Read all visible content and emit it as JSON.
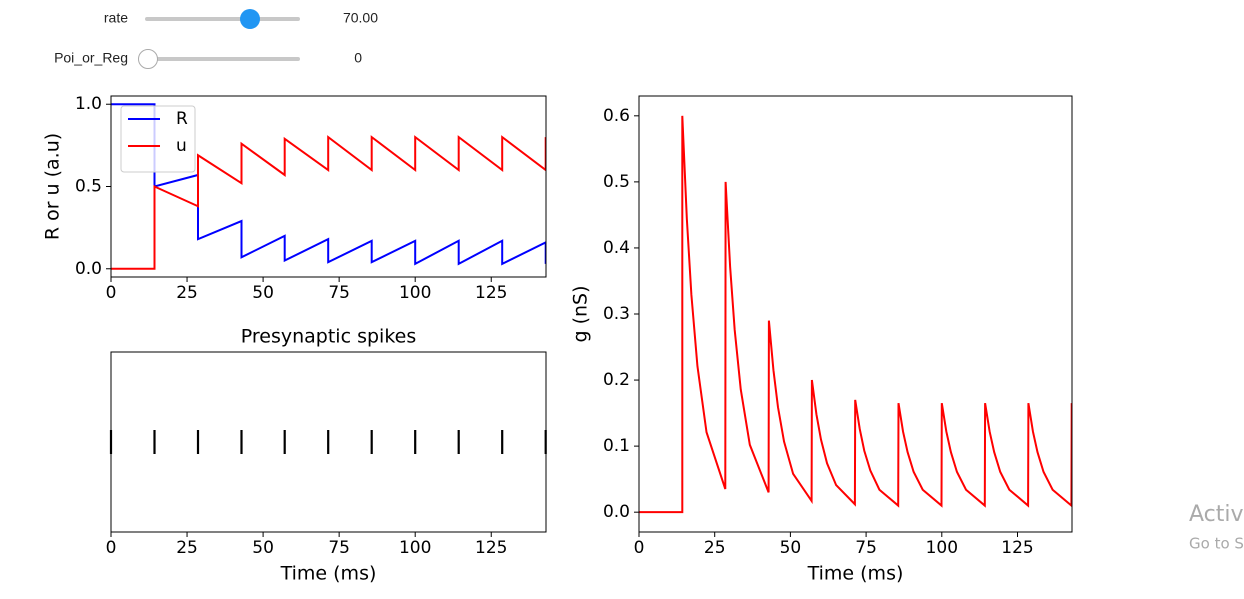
{
  "controls": [
    {
      "label": "rate",
      "value_text": "70.00"
    },
    {
      "label": "Poi_or_Reg",
      "value_text": "0"
    }
  ],
  "watermark": {
    "line1": "Activ",
    "line2": "Go to S"
  },
  "chart_data": [
    {
      "type": "line",
      "ylabel": "R or u (a.u)",
      "x": [
        0,
        14.3,
        14.3,
        28.6,
        28.6,
        42.9,
        42.9,
        57.1,
        57.1,
        71.4,
        71.4,
        85.7,
        85.7,
        100,
        100,
        114.3,
        114.3,
        128.6,
        128.6,
        142.9,
        142.9
      ],
      "series": [
        {
          "name": "R",
          "color": "#0000ff",
          "values": [
            1,
            1,
            0.5,
            0.57,
            0.18,
            0.29,
            0.07,
            0.2,
            0.05,
            0.18,
            0.04,
            0.17,
            0.04,
            0.17,
            0.03,
            0.17,
            0.03,
            0.17,
            0.03,
            0.16,
            0.03
          ]
        },
        {
          "name": "u",
          "color": "#ff0000",
          "values": [
            0,
            0,
            0.5,
            0.38,
            0.69,
            0.52,
            0.76,
            0.57,
            0.79,
            0.6,
            0.8,
            0.6,
            0.8,
            0.6,
            0.8,
            0.6,
            0.8,
            0.6,
            0.8,
            0.6,
            0.8
          ]
        }
      ],
      "xlim": [
        0,
        143
      ],
      "xticks": [
        0,
        25,
        50,
        75,
        100,
        125
      ],
      "ylim": [
        -0.05,
        1.05
      ],
      "yticks": [
        {
          "value": 0,
          "label": "0.0"
        },
        0.5,
        {
          "value": 1,
          "label": "1.0"
        }
      ],
      "legend": "upper left"
    },
    {
      "type": "raster",
      "title": "Presynaptic spikes",
      "xlabel": "Time (ms)",
      "color": "#000000",
      "values": [
        0,
        14.3,
        28.6,
        42.9,
        57.1,
        71.4,
        85.7,
        100,
        114.3,
        128.6,
        142.9
      ],
      "xlim": [
        0,
        143
      ],
      "xticks": [
        0,
        25,
        50,
        75,
        100,
        125
      ]
    },
    {
      "type": "line",
      "xlabel": "Time (ms)",
      "ylabel": "g (nS)",
      "x": [
        0,
        14.3,
        14.3,
        15.8,
        17.3,
        19.3,
        22.3,
        28.5,
        28.6,
        30.1,
        31.6,
        33.6,
        36.6,
        42.8,
        42.9,
        44.4,
        45.9,
        47.9,
        50.9,
        57.0,
        57.1,
        58.6,
        60.1,
        62.1,
        65.1,
        71.3,
        71.4,
        72.9,
        74.4,
        76.4,
        79.4,
        85.6,
        85.7,
        87.2,
        88.7,
        90.7,
        93.7,
        99.9,
        100,
        101.5,
        103,
        105,
        108,
        114.2,
        114.3,
        115.8,
        117.3,
        119.3,
        122.3,
        128.5,
        128.6,
        130.1,
        131.6,
        133.6,
        136.6,
        142.8,
        142.9
      ],
      "series": [
        {
          "color": "#ff0000",
          "values": [
            0,
            0,
            0.6,
            0.444,
            0.329,
            0.221,
            0.121,
            0.035,
            0.5,
            0.371,
            0.276,
            0.186,
            0.102,
            0.03,
            0.29,
            0.215,
            0.159,
            0.107,
            0.058,
            0.017,
            0.2,
            0.148,
            0.11,
            0.074,
            0.041,
            0.012,
            0.17,
            0.126,
            0.093,
            0.063,
            0.034,
            0.01,
            0.165,
            0.122,
            0.091,
            0.061,
            0.034,
            0.01,
            0.165,
            0.122,
            0.091,
            0.061,
            0.034,
            0.01,
            0.165,
            0.122,
            0.091,
            0.061,
            0.034,
            0.01,
            0.165,
            0.122,
            0.091,
            0.061,
            0.034,
            0.01,
            0.165
          ]
        }
      ],
      "xlim": [
        0,
        143
      ],
      "xticks": [
        0,
        25,
        50,
        75,
        100,
        125
      ],
      "ylim": [
        -0.03,
        0.63
      ],
      "yticks": [
        {
          "value": 0,
          "label": "0.0"
        },
        0.1,
        0.2,
        0.3,
        0.4,
        0.5,
        0.6
      ]
    }
  ]
}
